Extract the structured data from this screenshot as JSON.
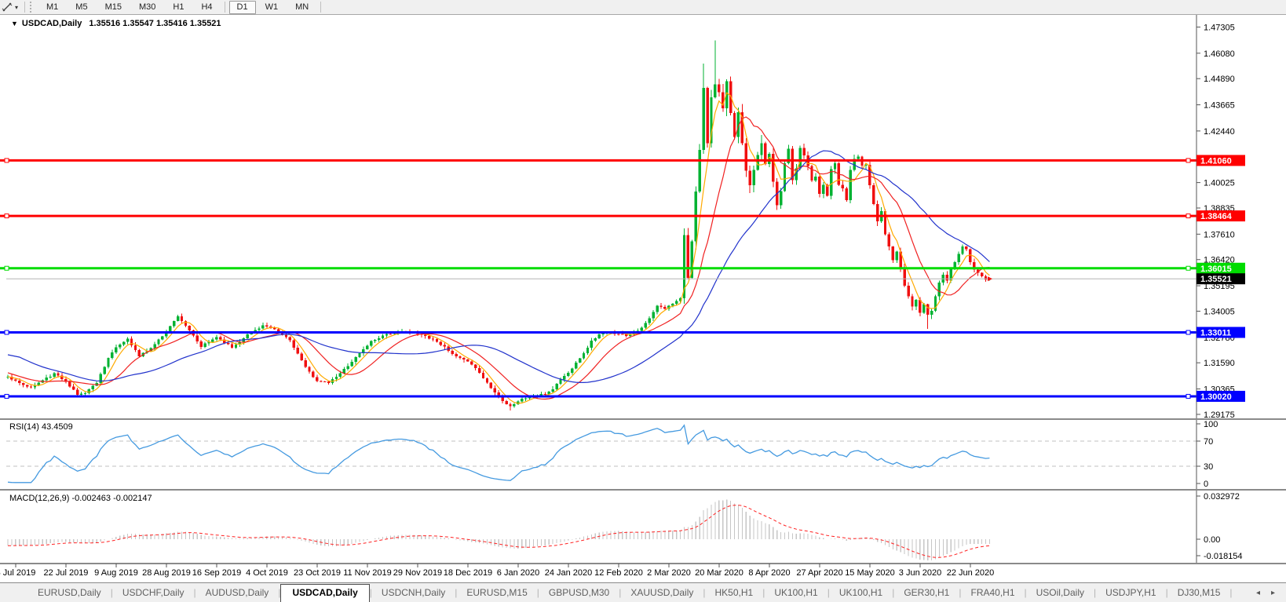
{
  "toolbar": {
    "timeframe_groups": [
      [
        "M1",
        "M5",
        "M15",
        "M30",
        "H1",
        "H4"
      ],
      [
        "D1",
        "W1",
        "MN"
      ]
    ],
    "active_timeframe": "D1"
  },
  "chart": {
    "collapse_arrow": "▼",
    "symbol_period": "USDCAD,Daily",
    "ohlc_text": "1.35516 1.35547 1.35416 1.35521",
    "open": "1.35516",
    "high": "1.35547",
    "low": "1.35416",
    "close": "1.35521"
  },
  "price_axis_ticks": [
    "1.47305",
    "1.46080",
    "1.44890",
    "1.43665",
    "1.42440",
    "1.40025",
    "1.38835",
    "1.37610",
    "1.36420",
    "1.35195",
    "1.34005",
    "1.32780",
    "1.31590",
    "1.30365",
    "1.29175"
  ],
  "date_axis_labels": [
    "3 Jul 2019",
    "22 Jul 2019",
    "9 Aug 2019",
    "28 Aug 2019",
    "16 Sep 2019",
    "4 Oct 2019",
    "23 Oct 2019",
    "11 Nov 2019",
    "29 Nov 2019",
    "18 Dec 2019",
    "6 Jan 2020",
    "24 Jan 2020",
    "12 Feb 2020",
    "2 Mar 2020",
    "20 Mar 2020",
    "8 Apr 2020",
    "27 Apr 2020",
    "15 May 2020",
    "3 Jun 2020",
    "22 Jun 2020"
  ],
  "rsi": {
    "label": "RSI(14) 43.4509",
    "period": "14",
    "value": "43.4509",
    "axis_ticks": [
      [
        "100",
        540
      ],
      [
        "70",
        562
      ],
      [
        "30",
        594
      ],
      [
        "0",
        616
      ]
    ],
    "guide_levels": [
      70,
      30
    ],
    "line_color": "#459ae0"
  },
  "macd": {
    "label": "MACD(12,26,9) -0.002463 -0.002147",
    "macd_value": "-0.002463",
    "signal_value": "-0.002147",
    "axis_ticks": [
      [
        "0.032972",
        632
      ],
      [
        "0.00",
        687
      ],
      [
        "-0.018154",
        708
      ]
    ],
    "histogram_color": "#c6c6c6",
    "signal_color": "#ff2222"
  },
  "tabs": {
    "items": [
      "EURUSD,Daily",
      "USDCHF,Daily",
      "AUDUSD,Daily",
      "USDCAD,Daily",
      "USDCNH,Daily",
      "EURUSD,M15",
      "GBPUSD,M30",
      "XAUUSD,Daily",
      "HK50,H1",
      "UK100,H1",
      "UK100,H1",
      "GER30,H1",
      "FRA40,H1",
      "USOil,Daily",
      "USDJPY,H1",
      "DJ30,M15"
    ],
    "active_index": 3,
    "scroll_left_icon": "◂",
    "scroll_right_icon": "▸"
  },
  "chart_data": {
    "type": "candlestick",
    "symbol": "USDCAD",
    "period": "Daily",
    "bars": 255,
    "bull_color": "#00b232",
    "bear_color": "#f01010",
    "current_price": {
      "value": 1.35521,
      "label": "1.35521",
      "line_color": "#b4b4b4",
      "label_bg": "#000000"
    },
    "levels": [
      {
        "value": 1.4106,
        "label": "1.41060",
        "color": "#ff0000",
        "width": 3
      },
      {
        "value": 1.38464,
        "label": "1.38464",
        "color": "#ff0000",
        "width": 3
      },
      {
        "value": 1.36015,
        "label": "1.36015",
        "color": "#00dc00",
        "width": 3
      },
      {
        "value": 1.33011,
        "label": "1.33011",
        "color": "#0000ff",
        "width": 3
      },
      {
        "value": 1.3002,
        "label": "1.30020",
        "color": "#0000ff",
        "width": 3
      }
    ],
    "moving_averages": [
      {
        "name": "ma-fast",
        "period": 5,
        "color": "#ffaa00"
      },
      {
        "name": "ma-mid",
        "period": 13,
        "color": "#f02222"
      },
      {
        "name": "ma-slow",
        "period": 34,
        "color": "#2233cc"
      }
    ],
    "close_keyframes": [
      [
        -30,
        1.334
      ],
      [
        -22,
        1.3265
      ],
      [
        -14,
        1.318
      ],
      [
        -7,
        1.3105
      ],
      [
        -2,
        1.309
      ],
      [
        0,
        1.3095
      ],
      [
        3,
        1.3062
      ],
      [
        6,
        1.3044
      ],
      [
        9,
        1.3076
      ],
      [
        12,
        1.3108
      ],
      [
        15,
        1.3072
      ],
      [
        18,
        1.301
      ],
      [
        20,
        1.3018
      ],
      [
        23,
        1.3066
      ],
      [
        26,
        1.3182
      ],
      [
        28,
        1.323
      ],
      [
        31,
        1.3272
      ],
      [
        34,
        1.319
      ],
      [
        37,
        1.3228
      ],
      [
        41,
        1.3304
      ],
      [
        44,
        1.3378
      ],
      [
        46,
        1.3332
      ],
      [
        50,
        1.3234
      ],
      [
        54,
        1.328
      ],
      [
        58,
        1.323
      ],
      [
        62,
        1.3292
      ],
      [
        66,
        1.3334
      ],
      [
        70,
        1.3306
      ],
      [
        73,
        1.3264
      ],
      [
        77,
        1.3138
      ],
      [
        80,
        1.3074
      ],
      [
        83,
        1.3064
      ],
      [
        86,
        1.311
      ],
      [
        90,
        1.3184
      ],
      [
        94,
        1.326
      ],
      [
        98,
        1.3294
      ],
      [
        103,
        1.3304
      ],
      [
        107,
        1.329
      ],
      [
        110,
        1.327
      ],
      [
        113,
        1.3234
      ],
      [
        116,
        1.3188
      ],
      [
        119,
        1.3164
      ],
      [
        122,
        1.3114
      ],
      [
        125,
        1.304
      ],
      [
        128,
        1.2982
      ],
      [
        130,
        1.2956
      ],
      [
        133,
        1.299
      ],
      [
        136,
        1.3002
      ],
      [
        139,
        1.3012
      ],
      [
        141,
        1.3036
      ],
      [
        143,
        1.3082
      ],
      [
        145,
        1.3112
      ],
      [
        147,
        1.3162
      ],
      [
        149,
        1.3202
      ],
      [
        151,
        1.3262
      ],
      [
        153,
        1.3292
      ],
      [
        155,
        1.3302
      ],
      [
        158,
        1.3296
      ],
      [
        160,
        1.3286
      ],
      [
        162,
        1.3302
      ],
      [
        164,
        1.3322
      ],
      [
        166,
        1.3366
      ],
      [
        168,
        1.3426
      ],
      [
        170,
        1.3412
      ],
      [
        172,
        1.3436
      ],
      [
        174,
        1.3466
      ],
      [
        175,
        1.3756
      ],
      [
        176,
        1.3562
      ],
      [
        177,
        1.3726
      ],
      [
        178,
        1.3956
      ],
      [
        179,
        1.4152
      ],
      [
        180,
        1.4446
      ],
      [
        181,
        1.4182
      ],
      [
        182,
        1.4406
      ],
      [
        183,
        1.4462
      ],
      [
        184,
        1.4422
      ],
      [
        185,
        1.4352
      ],
      [
        186,
        1.4472
      ],
      [
        187,
        1.4332
      ],
      [
        188,
        1.4212
      ],
      [
        189,
        1.4332
      ],
      [
        190,
        1.4182
      ],
      [
        191,
        1.4052
      ],
      [
        192,
        1.3992
      ],
      [
        193,
        1.4062
      ],
      [
        194,
        1.4132
      ],
      [
        195,
        1.4192
      ],
      [
        196,
        1.4092
      ],
      [
        197,
        1.4142
      ],
      [
        198,
        1.4012
      ],
      [
        199,
        1.3892
      ],
      [
        200,
        1.3962
      ],
      [
        201,
        1.4092
      ],
      [
        202,
        1.4162
      ],
      [
        203,
        1.4012
      ],
      [
        204,
        1.4072
      ],
      [
        205,
        1.4162
      ],
      [
        206,
        1.4132
      ],
      [
        207,
        1.4082
      ],
      [
        208,
        1.4012
      ],
      [
        209,
        1.4032
      ],
      [
        210,
        1.3952
      ],
      [
        211,
        1.3992
      ],
      [
        212,
        1.3942
      ],
      [
        213,
        1.4062
      ],
      [
        214,
        1.4092
      ],
      [
        215,
        1.3992
      ],
      [
        216,
        1.3972
      ],
      [
        217,
        1.3922
      ],
      [
        218,
        1.4062
      ],
      [
        219,
        1.4112
      ],
      [
        220,
        1.4126
      ],
      [
        221,
        1.4082
      ],
      [
        222,
        1.4082
      ],
      [
        223,
        1.3992
      ],
      [
        224,
        1.3902
      ],
      [
        225,
        1.3822
      ],
      [
        226,
        1.3872
      ],
      [
        227,
        1.3762
      ],
      [
        228,
        1.3702
      ],
      [
        229,
        1.3642
      ],
      [
        230,
        1.3682
      ],
      [
        231,
        1.3602
      ],
      [
        232,
        1.3522
      ],
      [
        233,
        1.3472
      ],
      [
        234,
        1.3422
      ],
      [
        235,
        1.3452
      ],
      [
        236,
        1.3392
      ],
      [
        237,
        1.3432
      ],
      [
        238,
        1.3382
      ],
      [
        239,
        1.3402
      ],
      [
        240,
        1.3468
      ],
      [
        241,
        1.3532
      ],
      [
        242,
        1.3572
      ],
      [
        243,
        1.3542
      ],
      [
        244,
        1.3602
      ],
      [
        245,
        1.3632
      ],
      [
        246,
        1.3668
      ],
      [
        247,
        1.3702
      ],
      [
        248,
        1.3692
      ],
      [
        249,
        1.3628
      ],
      [
        250,
        1.3592
      ],
      [
        251,
        1.3582
      ],
      [
        252,
        1.3562
      ],
      [
        253,
        1.3548
      ],
      [
        254,
        1.35521
      ]
    ],
    "overrides": {
      "18": {
        "low": 1.3002
      },
      "130": {
        "low": 1.2935
      },
      "180": {
        "high": 1.456
      },
      "183": {
        "high": 1.4668
      },
      "238": {
        "low": 1.3318
      },
      "254": {
        "close": 1.35521
      }
    }
  }
}
